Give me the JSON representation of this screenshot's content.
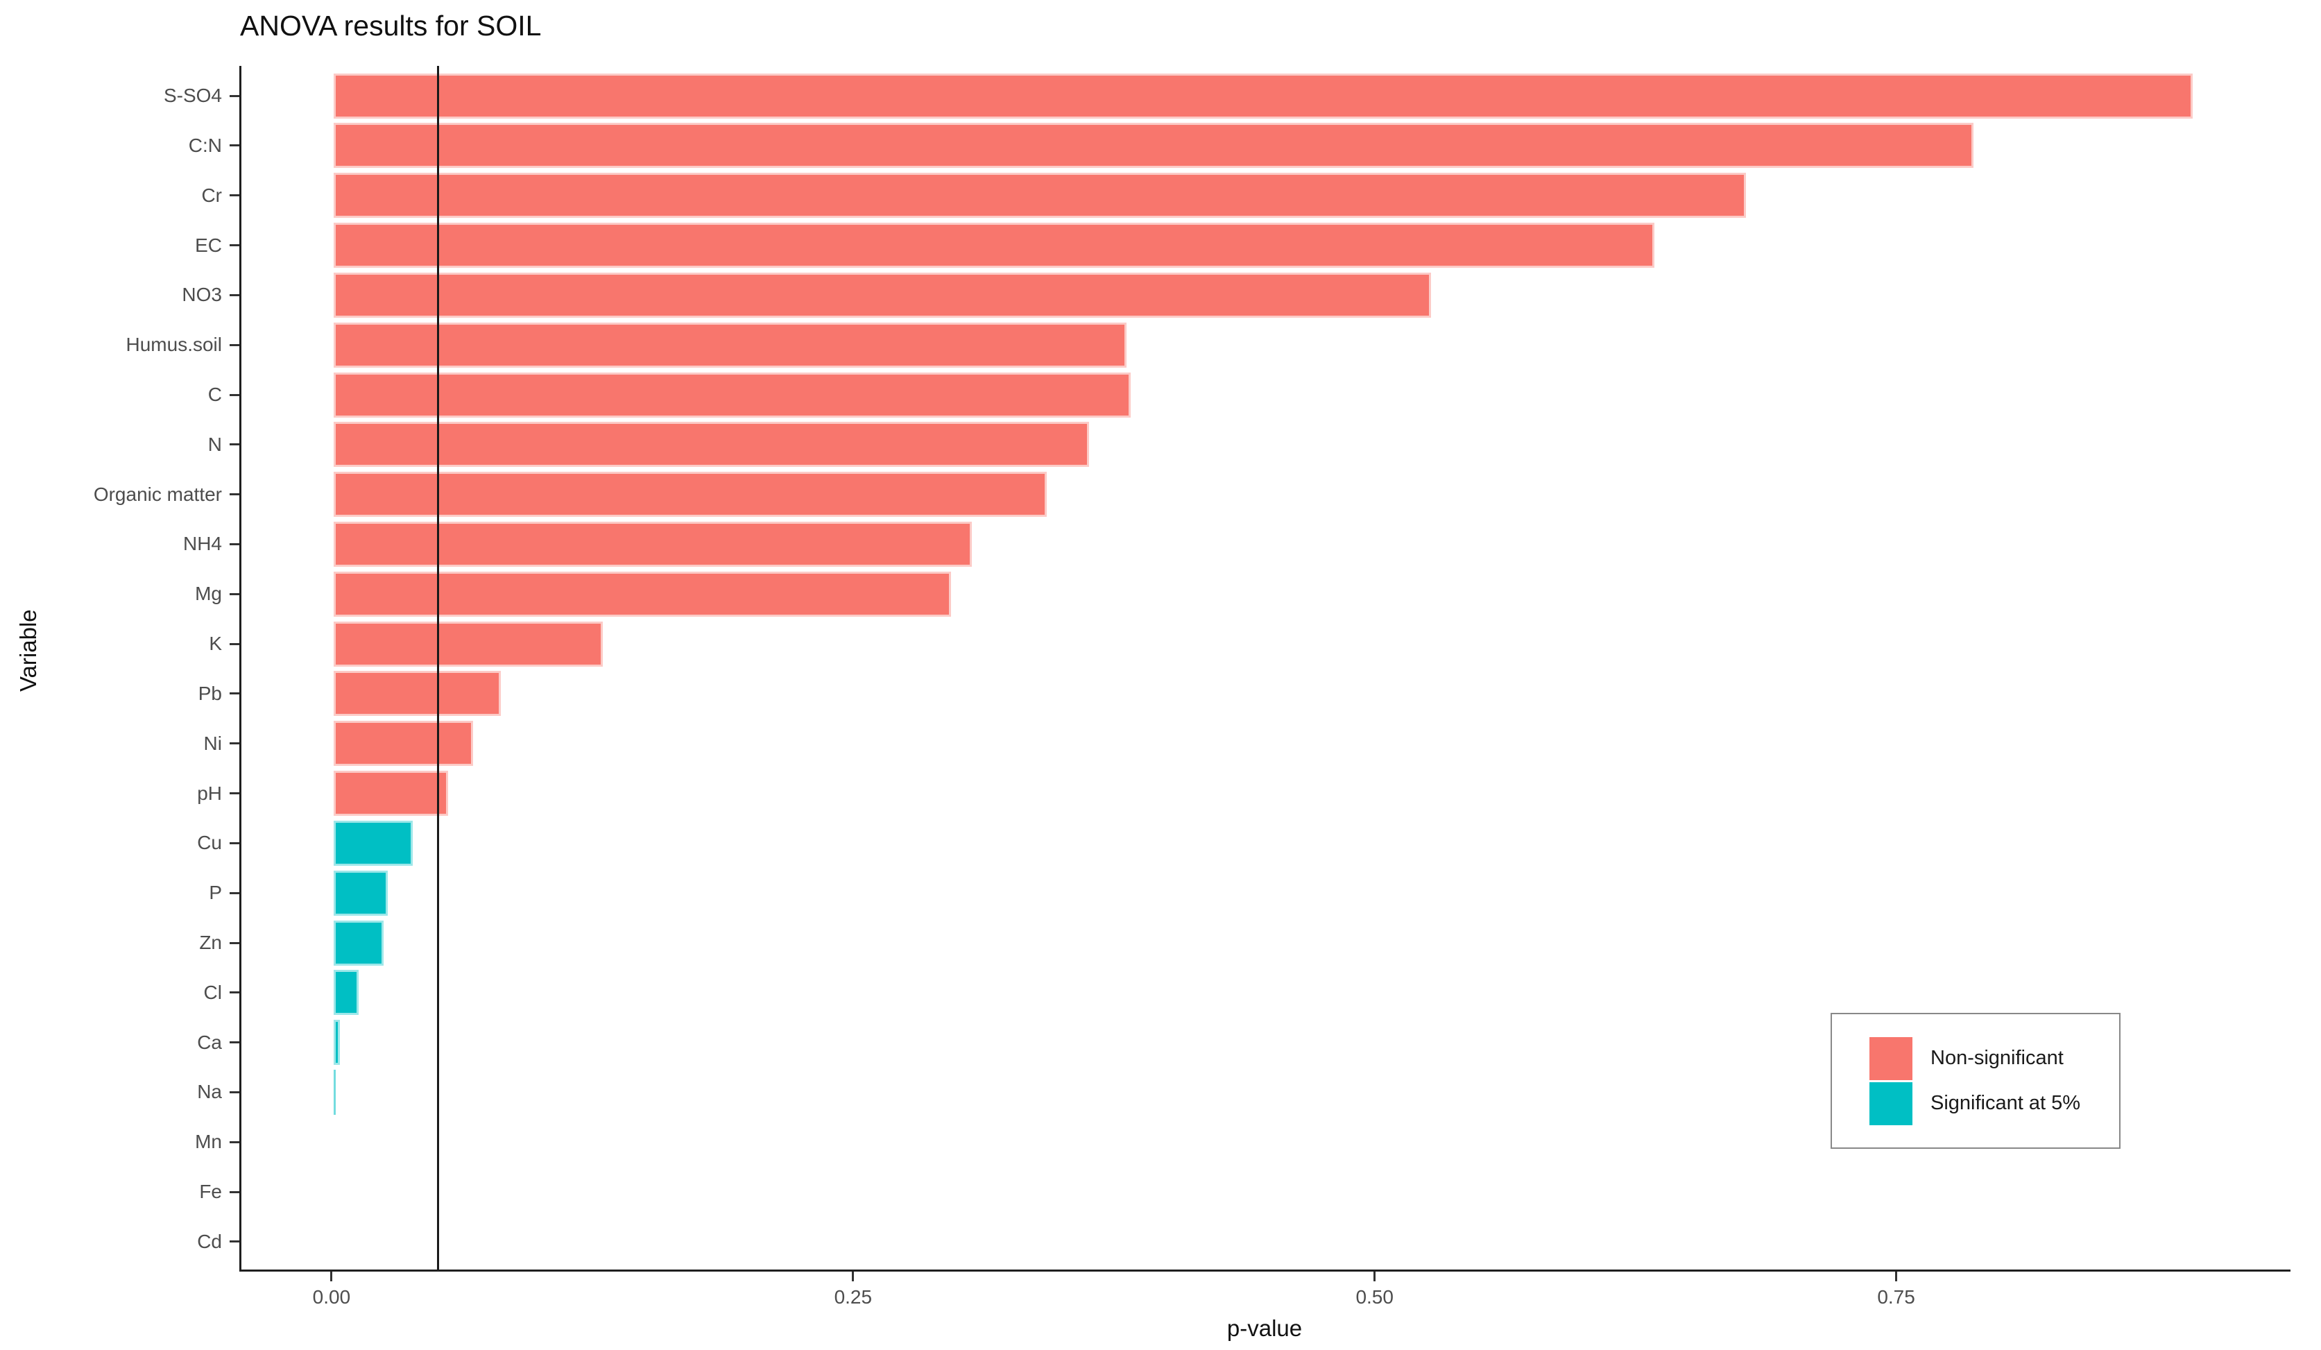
{
  "chart_data": {
    "type": "bar",
    "orientation": "horizontal",
    "title": "ANOVA results for SOIL",
    "xlabel": "p-value",
    "ylabel": "Variable",
    "x_tick_values": [
      0.0,
      0.25,
      0.5,
      0.75
    ],
    "x_tick_labels": [
      "0.00",
      "0.25",
      "0.50",
      "0.75"
    ],
    "xlim": [
      -0.0442,
      0.939
    ],
    "grid": false,
    "significance_line": 0.05,
    "categories": [
      "S-SO4",
      "C:N",
      "Cr",
      "EC",
      "NO3",
      "Humus.soil",
      "C",
      "N",
      "Organic matter",
      "NH4",
      "Mg",
      "K",
      "Pb",
      "Ni",
      "pH",
      "Cu",
      "P",
      "Zn",
      "Cl",
      "Ca",
      "Na",
      "Mn",
      "Fe",
      "Cd"
    ],
    "values": [
      0.891,
      0.786,
      0.677,
      0.633,
      0.526,
      0.38,
      0.382,
      0.362,
      0.342,
      0.306,
      0.296,
      0.129,
      0.08,
      0.067,
      0.055,
      0.038,
      0.026,
      0.024,
      0.012,
      0.003,
      0.001,
      0.0,
      0.0,
      0.0
    ],
    "significant": [
      false,
      false,
      false,
      false,
      false,
      false,
      false,
      false,
      false,
      false,
      false,
      false,
      false,
      false,
      false,
      true,
      true,
      true,
      true,
      true,
      true,
      true,
      true,
      true
    ],
    "colors": {
      "non_significant": "#F8766D",
      "significant": "#00BFC4",
      "significance_line": "#1a1a1a",
      "axis_line": "#1f1f1f",
      "tick_text": "#4d4d4d",
      "background": "#ffffff"
    },
    "legend": {
      "position": "inside-bottom-right",
      "entries": [
        {
          "label": "Non-significant",
          "color_key": "non_significant"
        },
        {
          "label": "Significant at 5%",
          "color_key": "significant"
        }
      ]
    }
  }
}
